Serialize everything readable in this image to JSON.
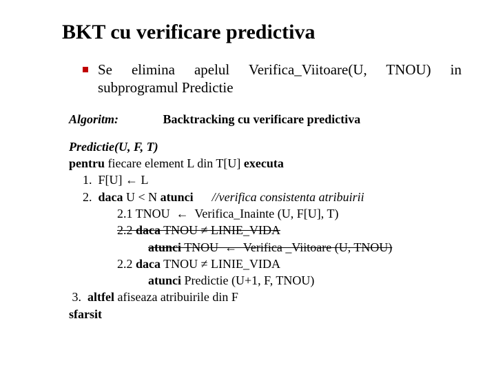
{
  "title": "BKT cu verificare predictiva",
  "bullet": "Se elimina apelul Verifica_Viitoare(U, TNOU) in subprogramul Predictie",
  "algo": {
    "label": "Algoritm:",
    "name": "Backtracking cu verificare predictiva"
  },
  "lines": {
    "l1a": "Predictie(U, F, T)",
    "l2a": "pentru",
    "l2b": " fiecare element L din T[U] ",
    "l2c": "executa",
    "l3a": "1.  F[U] ← L",
    "l4a": "2.  ",
    "l4b": "daca",
    "l4c": " U < N ",
    "l4d": "atunci",
    "l4e": "      //verifica consistenta atribuirii",
    "l5a": "2.1 TNOU  ←  Verifica_Inainte (U, F[U], T)",
    "l6a": "2.2 ",
    "l6b": "daca",
    "l6c": " TNOU ≠ LINIE_VIDA",
    "l7a": "atunci",
    "l7b": " TNOU  ←  Verifica _Viitoare (U, TNOU)",
    "l8a": "2.2 ",
    "l8b": "daca",
    "l8c": " TNOU ≠ LINIE_VIDA",
    "l9a": "atunci",
    "l9b": " Predictie (U+1, F, TNOU)",
    "l10a": " 3.  ",
    "l10b": "altfel",
    "l10c": " afiseaza atribuirile din F",
    "l11a": "sfarsit"
  },
  "colors": {
    "bullet": "#c00000",
    "text": "#000000",
    "background": "#ffffff"
  }
}
